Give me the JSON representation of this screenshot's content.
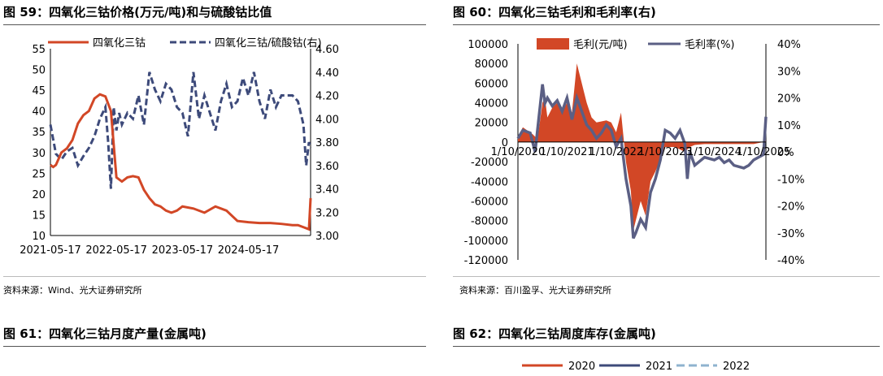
{
  "figures": {
    "f59": {
      "title": "图 59：四氧化三钴价格(万元/吨)和与硫酸钴比值",
      "source": "资料来源：Wind、光大证券研究所"
    },
    "f60": {
      "title": "图 60：四氧化三钴毛利和毛利率(右)",
      "source": "资料来源：百川盈孚、光大证券研究所"
    },
    "f61": {
      "title": "图 61：四氧化三钴月度产量(金属吨)"
    },
    "f62": {
      "title": "图 62：四氧化三钴周度库存(金属吨)"
    }
  },
  "chart_data": [
    {
      "type": "line",
      "ylim": [
        10,
        55
      ],
      "y2lim": [
        3.0,
        4.6
      ],
      "yticks": [
        "55",
        "50",
        "45",
        "40",
        "35",
        "30",
        "25",
        "20",
        "15",
        "10"
      ],
      "y2ticks": [
        "4.60",
        "4.40",
        "4.20",
        "4.00",
        "3.80",
        "3.60",
        "3.40",
        "3.20",
        "3.00"
      ],
      "xticks": [
        "2021-05-17",
        "2022-05-17",
        "2023-05-17",
        "2024-05-17"
      ],
      "series": [
        {
          "name": "四氧化三钴",
          "axis": "left",
          "color": "#d24726",
          "x": [
            0,
            0.5,
            1,
            2,
            3,
            4,
            5,
            6,
            7,
            8,
            9,
            10,
            11,
            12,
            13,
            14,
            15,
            16,
            17,
            18,
            19,
            20,
            21,
            22,
            23,
            24,
            26,
            28,
            30,
            32,
            34,
            36,
            38,
            40,
            42,
            44,
            45,
            46,
            47,
            47.3
          ],
          "y": [
            27,
            26.5,
            27,
            30,
            31,
            33,
            37,
            39,
            40,
            43,
            44,
            43.5,
            40,
            24,
            23,
            24,
            24.3,
            24,
            21,
            19,
            17.5,
            17,
            16,
            15.5,
            16,
            17,
            16.5,
            15.5,
            17,
            16,
            13.5,
            13.2,
            13,
            13,
            12.8,
            12.5,
            12.5,
            12,
            11.5,
            19
          ]
        },
        {
          "name": "四氧化三钴/硫酸钴(右)",
          "axis": "right",
          "color": "#3d4a7a",
          "dashed": true,
          "x": [
            0,
            1,
            2,
            3,
            4,
            5,
            6,
            7,
            8,
            9,
            10,
            10.5,
            11,
            11.5,
            12,
            12.5,
            13,
            14,
            15,
            16,
            17,
            18,
            19,
            20,
            21,
            22,
            23,
            24,
            25,
            26,
            27,
            28,
            29,
            30,
            31,
            32,
            33,
            34,
            35,
            36,
            37,
            38,
            39,
            40,
            41,
            42,
            43,
            44,
            45,
            46,
            46.5,
            47,
            47.3
          ],
          "y": [
            3.95,
            3.7,
            3.65,
            3.72,
            3.75,
            3.6,
            3.68,
            3.75,
            3.85,
            4.0,
            4.1,
            3.8,
            3.4,
            4.1,
            3.9,
            4.05,
            3.95,
            4.05,
            4.0,
            4.2,
            3.95,
            4.4,
            4.25,
            4.15,
            4.3,
            4.25,
            4.1,
            4.05,
            3.85,
            4.4,
            4.0,
            4.2,
            4.05,
            3.9,
            4.15,
            4.3,
            4.1,
            4.15,
            4.35,
            4.2,
            4.4,
            4.15,
            4.0,
            4.25,
            4.1,
            4.2,
            4.2,
            4.2,
            4.15,
            3.95,
            3.6,
            3.8,
            3.75
          ]
        }
      ]
    },
    {
      "type": "area",
      "ylim": [
        -120000,
        100000
      ],
      "y2lim": [
        -40,
        40
      ],
      "yticks": [
        "100000",
        "80000",
        "60000",
        "40000",
        "20000",
        "0",
        "-20000",
        "-40000",
        "-60000",
        "-80000",
        "-100000",
        "-120000"
      ],
      "y2ticks": [
        "40%",
        "30%",
        "20%",
        "10%",
        "0%",
        "-10%",
        "-20%",
        "-30%",
        "-40%"
      ],
      "xticks": [
        "1/10/2020",
        "1/10/2021",
        "1/10/2022",
        "1/10/2023",
        "1/10/2024",
        "1/10/2025"
      ],
      "series": [
        {
          "name": "毛利(元/吨)",
          "axis": "left",
          "type": "area",
          "color": "#d24726",
          "x": [
            0,
            0.1,
            0.3,
            0.4,
            0.5,
            0.55,
            0.6,
            0.7,
            0.8,
            0.9,
            1.0,
            1.1,
            1.2,
            1.3,
            1.35,
            1.4,
            1.5,
            1.6,
            1.8,
            1.9,
            2.0,
            2.1,
            2.2,
            2.3,
            2.35,
            2.4,
            2.5,
            2.6,
            2.7,
            2.8,
            3.0,
            3.2,
            3.4,
            3.5,
            3.6,
            3.8,
            4.0,
            4.2,
            4.4,
            4.6,
            4.8,
            5.0,
            5.05
          ],
          "y": [
            5000,
            15000,
            8000,
            3000,
            40000,
            45000,
            25000,
            35000,
            40000,
            30000,
            40000,
            30000,
            80000,
            60000,
            50000,
            40000,
            25000,
            20000,
            22000,
            20000,
            10000,
            30000,
            -20000,
            -50000,
            -90000,
            -80000,
            -60000,
            -75000,
            -40000,
            -30000,
            -5000,
            -5000,
            -10000,
            -5000,
            -3000,
            -2000,
            -2000,
            -2000,
            -2000,
            -2000,
            -2000,
            0,
            25000
          ]
        },
        {
          "name": "毛利率(%)",
          "axis": "right",
          "type": "line",
          "color": "#5b5f84",
          "x": [
            0,
            0.1,
            0.25,
            0.35,
            0.5,
            0.55,
            0.6,
            0.7,
            0.8,
            0.9,
            1.0,
            1.1,
            1.2,
            1.3,
            1.4,
            1.5,
            1.6,
            1.7,
            1.8,
            1.9,
            2.0,
            2.1,
            2.2,
            2.3,
            2.35,
            2.4,
            2.5,
            2.6,
            2.7,
            2.8,
            2.9,
            3.0,
            3.1,
            3.2,
            3.3,
            3.4,
            3.45,
            3.5,
            3.6,
            3.8,
            4.0,
            4.1,
            4.2,
            4.3,
            4.4,
            4.6,
            4.7,
            4.8,
            5.0,
            5.05
          ],
          "y": [
            5,
            8,
            7,
            0,
            25,
            18,
            20,
            17,
            19,
            15,
            20,
            12,
            20,
            15,
            10,
            8,
            5,
            7,
            10,
            8,
            2,
            5,
            -10,
            -20,
            -32,
            -30,
            -25,
            -28,
            -15,
            -10,
            -3,
            8,
            7,
            5,
            8,
            3,
            -10,
            0,
            -5,
            -2,
            -3,
            -2,
            -4,
            -3,
            -5,
            -6,
            -5,
            -3,
            -1,
            13
          ]
        }
      ]
    },
    {
      "type": "line",
      "legend": [
        "2020",
        "2021",
        "2022"
      ],
      "colors": [
        "#d24726",
        "#3d4a7a",
        "#8fb3cf"
      ],
      "dashes": [
        false,
        false,
        true
      ]
    }
  ]
}
